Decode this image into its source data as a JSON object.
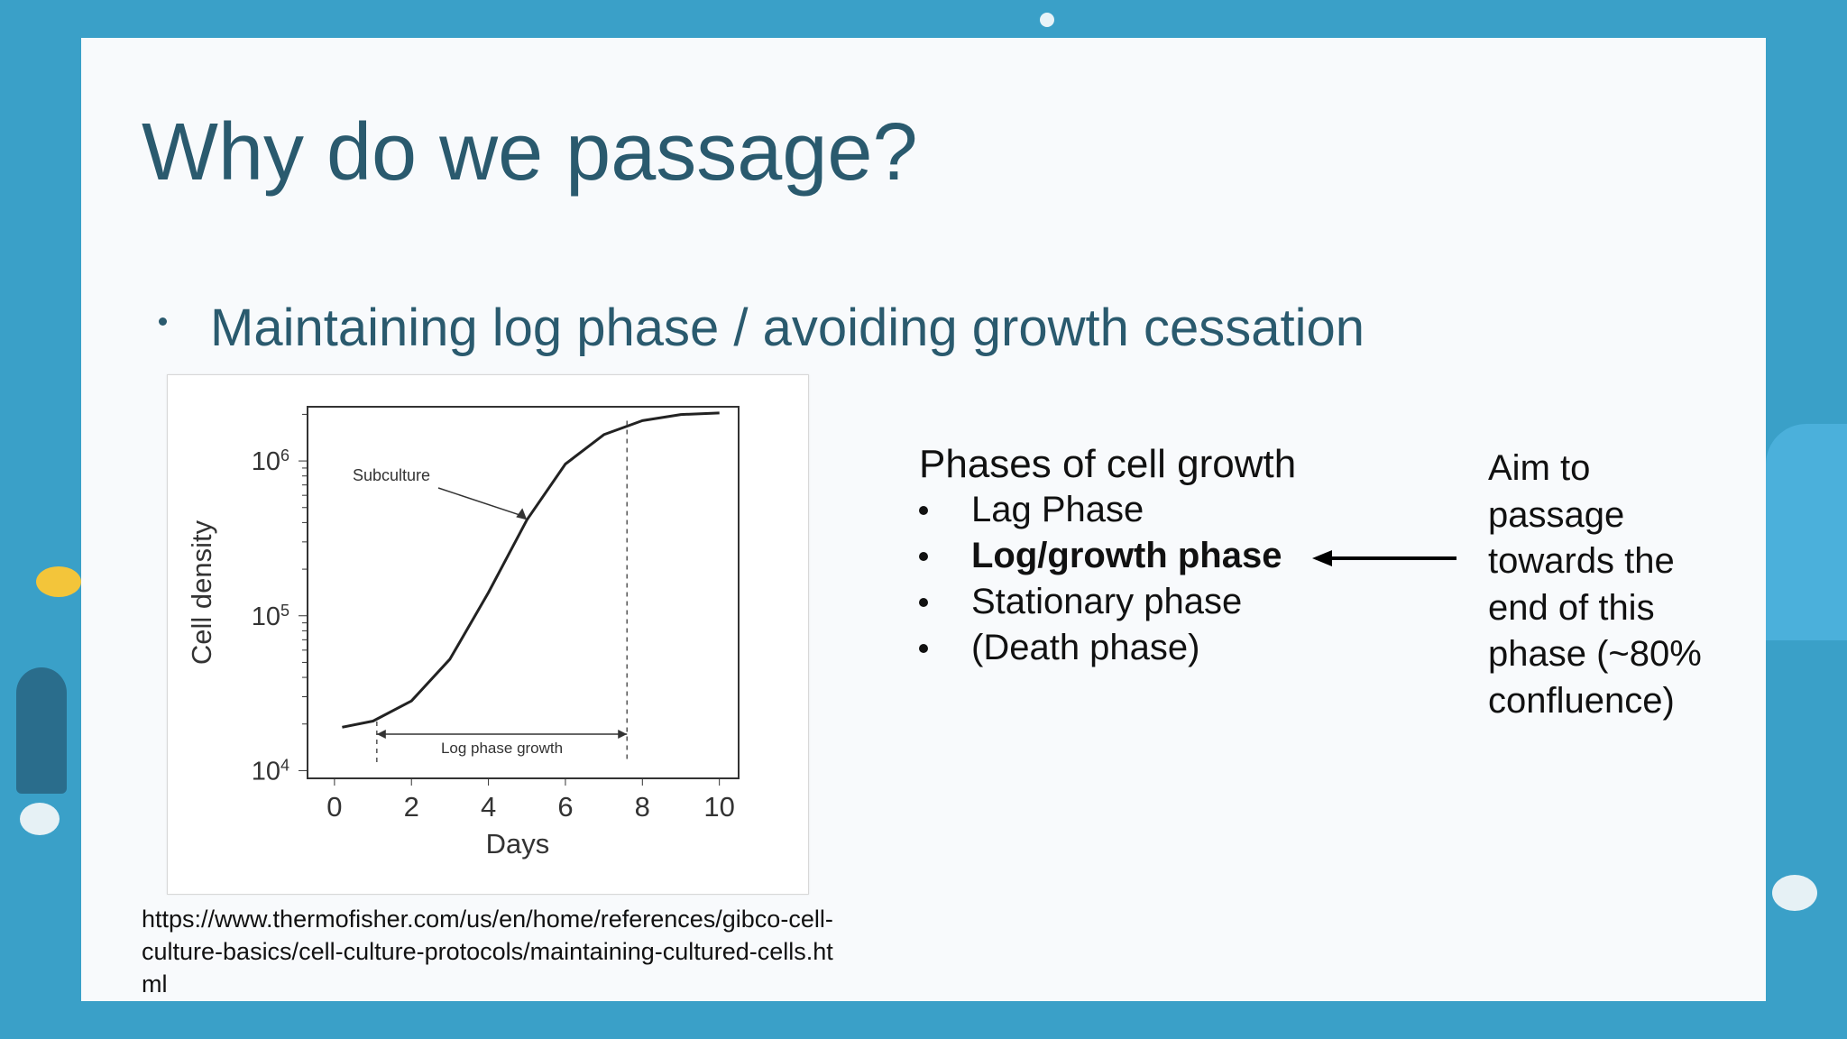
{
  "slide": {
    "title": "Why do we passage?",
    "main_bullet": "Maintaining log phase / avoiding growth cessation",
    "source_url": "https://www.thermofisher.com/us/en/home/references/gibco-cell-culture-basics/cell-culture-protocols/maintaining-cultured-cells.html",
    "phases_title": "Phases of cell growth",
    "phases": [
      {
        "label": "Lag Phase",
        "bold": false
      },
      {
        "label": "Log/growth phase",
        "bold": true
      },
      {
        "label": "Stationary phase",
        "bold": false
      },
      {
        "label": "(Death phase)",
        "bold": false
      }
    ],
    "aim_text": "Aim to passage towards the end of this phase (~80% confluence)"
  },
  "chart_data": {
    "type": "line",
    "xlabel": "Days",
    "ylabel": "Cell density",
    "x_ticks": [
      "0",
      "2",
      "4",
      "6",
      "8",
      "10"
    ],
    "y_ticks": [
      {
        "base": "10",
        "exp": "4",
        "value": 10000
      },
      {
        "base": "10",
        "exp": "5",
        "value": 100000
      },
      {
        "base": "10",
        "exp": "6",
        "value": 1000000
      }
    ],
    "xlim": [
      -0.7,
      10.5
    ],
    "y_scale": "log",
    "ylog_range": [
      3.95,
      6.35
    ],
    "series": [
      {
        "x": [
          0.2,
          1.0,
          2.0,
          3.0,
          4.0,
          5.0,
          6.0,
          7.0,
          8.0,
          9.0,
          10.0
        ],
        "log_y": [
          4.28,
          4.32,
          4.45,
          4.72,
          5.15,
          5.62,
          5.98,
          6.17,
          6.26,
          6.3,
          6.31
        ]
      }
    ],
    "annotations": [
      {
        "text": "Subculture",
        "x": 5.0,
        "log_y": 5.62
      },
      {
        "text": "Log phase growth",
        "x_start": 1.1,
        "x_end": 7.6
      }
    ],
    "grid": false
  }
}
